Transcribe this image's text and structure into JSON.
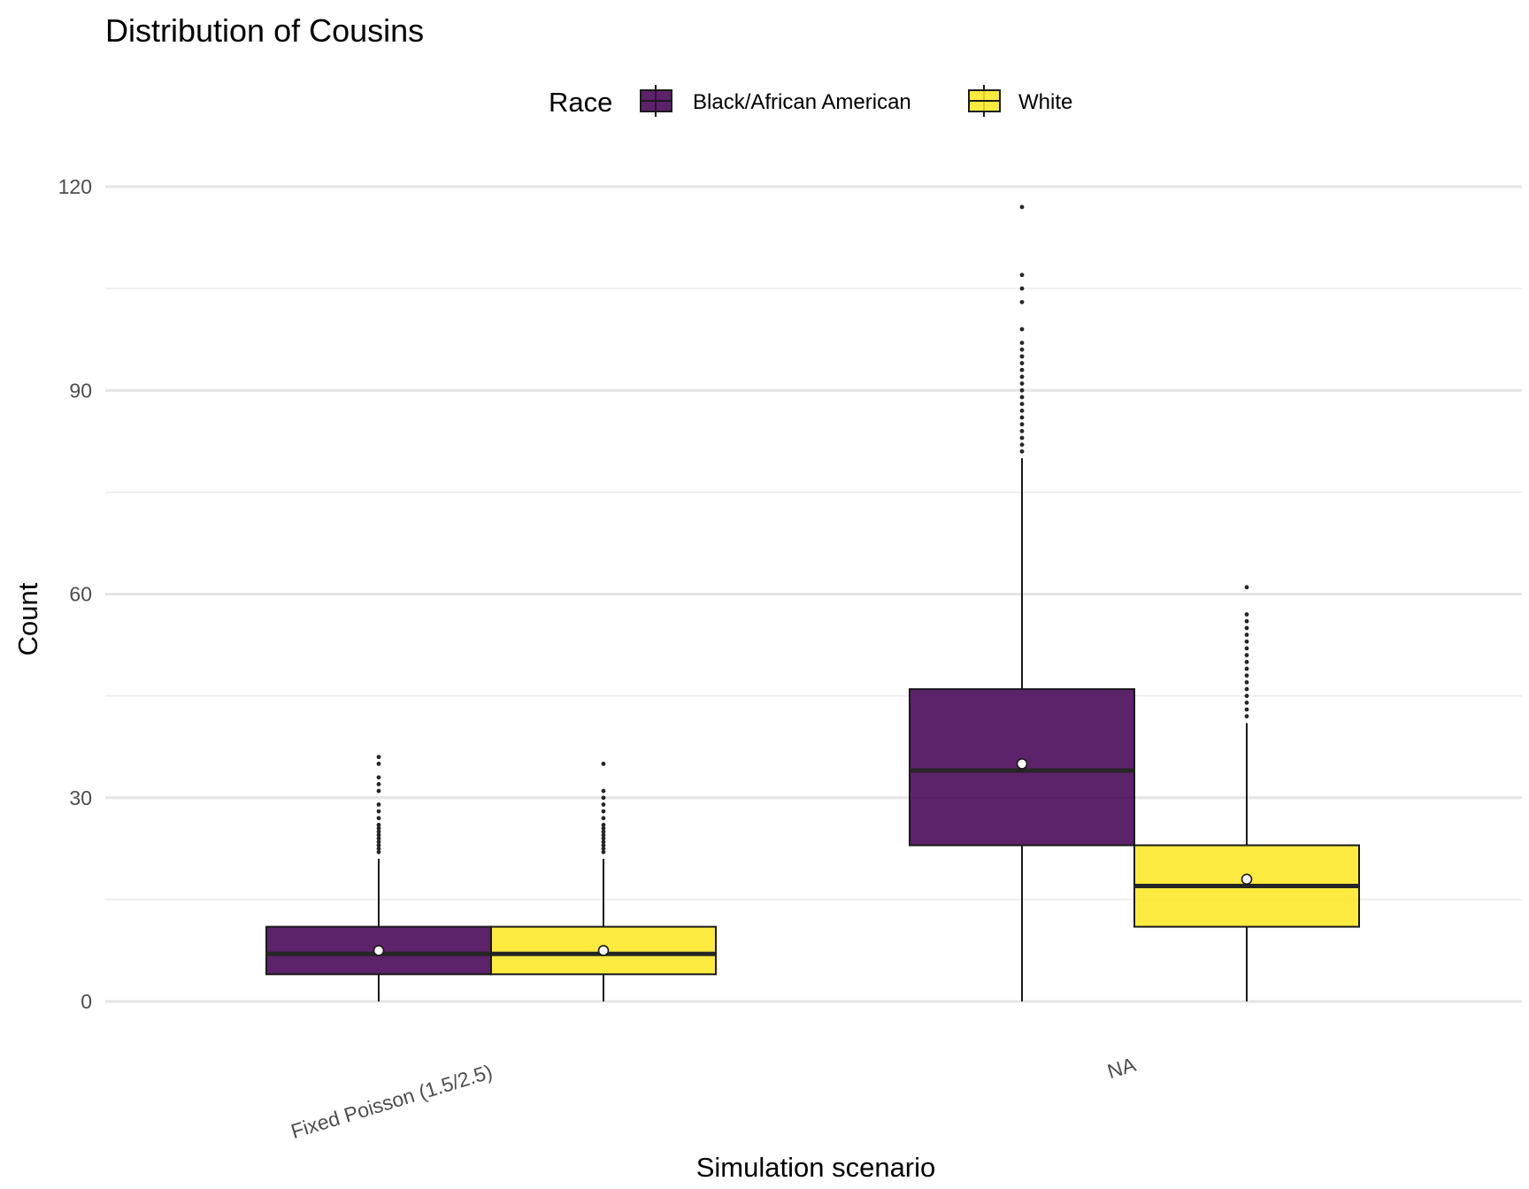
{
  "chart_data": {
    "type": "box",
    "title": "Distribution of Cousins",
    "xlabel": "Simulation scenario",
    "ylabel": "Count",
    "ylim": [
      -3,
      128
    ],
    "yticks": [
      0,
      30,
      60,
      90,
      120
    ],
    "y_minor_ticks": [
      15,
      45,
      75,
      105
    ],
    "grid": true,
    "legend": {
      "title": "Race",
      "position": "top",
      "entries": [
        "Black/African American",
        "White"
      ]
    },
    "categories": [
      "Fixed Poisson (1.5/2.5)",
      "NA"
    ],
    "series": [
      {
        "name": "Black/African American",
        "color": "#440154",
        "boxes": [
          {
            "category": "Fixed Poisson (1.5/2.5)",
            "min": 0,
            "q1": 4,
            "median": 7,
            "mean": 7.5,
            "q3": 11,
            "max": 21,
            "outliers": [
              22,
              22.5,
              23,
              23.5,
              24,
              24.5,
              25,
              25.5,
              26,
              27,
              28,
              29,
              31,
              32,
              33,
              35,
              36
            ]
          },
          {
            "category": "NA",
            "min": 0,
            "q1": 23,
            "median": 34,
            "mean": 35,
            "q3": 46,
            "max": 80,
            "outliers": [
              81,
              82,
              83,
              84,
              85,
              86,
              87,
              88,
              89,
              90,
              91,
              92,
              93,
              94,
              95,
              96,
              97,
              99,
              103,
              105,
              107,
              117
            ]
          }
        ]
      },
      {
        "name": "White",
        "color": "#FDE725",
        "boxes": [
          {
            "category": "Fixed Poisson (1.5/2.5)",
            "min": 0,
            "q1": 4,
            "median": 7,
            "mean": 7.5,
            "q3": 11,
            "max": 21,
            "outliers": [
              22,
              22.5,
              23,
              23.5,
              24,
              24.5,
              25,
              25.5,
              26,
              27,
              28,
              29,
              30,
              31,
              35
            ]
          },
          {
            "category": "NA",
            "min": 0,
            "q1": 11,
            "median": 17,
            "mean": 18,
            "q3": 23,
            "max": 41,
            "outliers": [
              42,
              43,
              44,
              45,
              46,
              47,
              48,
              49,
              50,
              51,
              52,
              53,
              54,
              55,
              56,
              57,
              61
            ]
          }
        ]
      }
    ]
  }
}
